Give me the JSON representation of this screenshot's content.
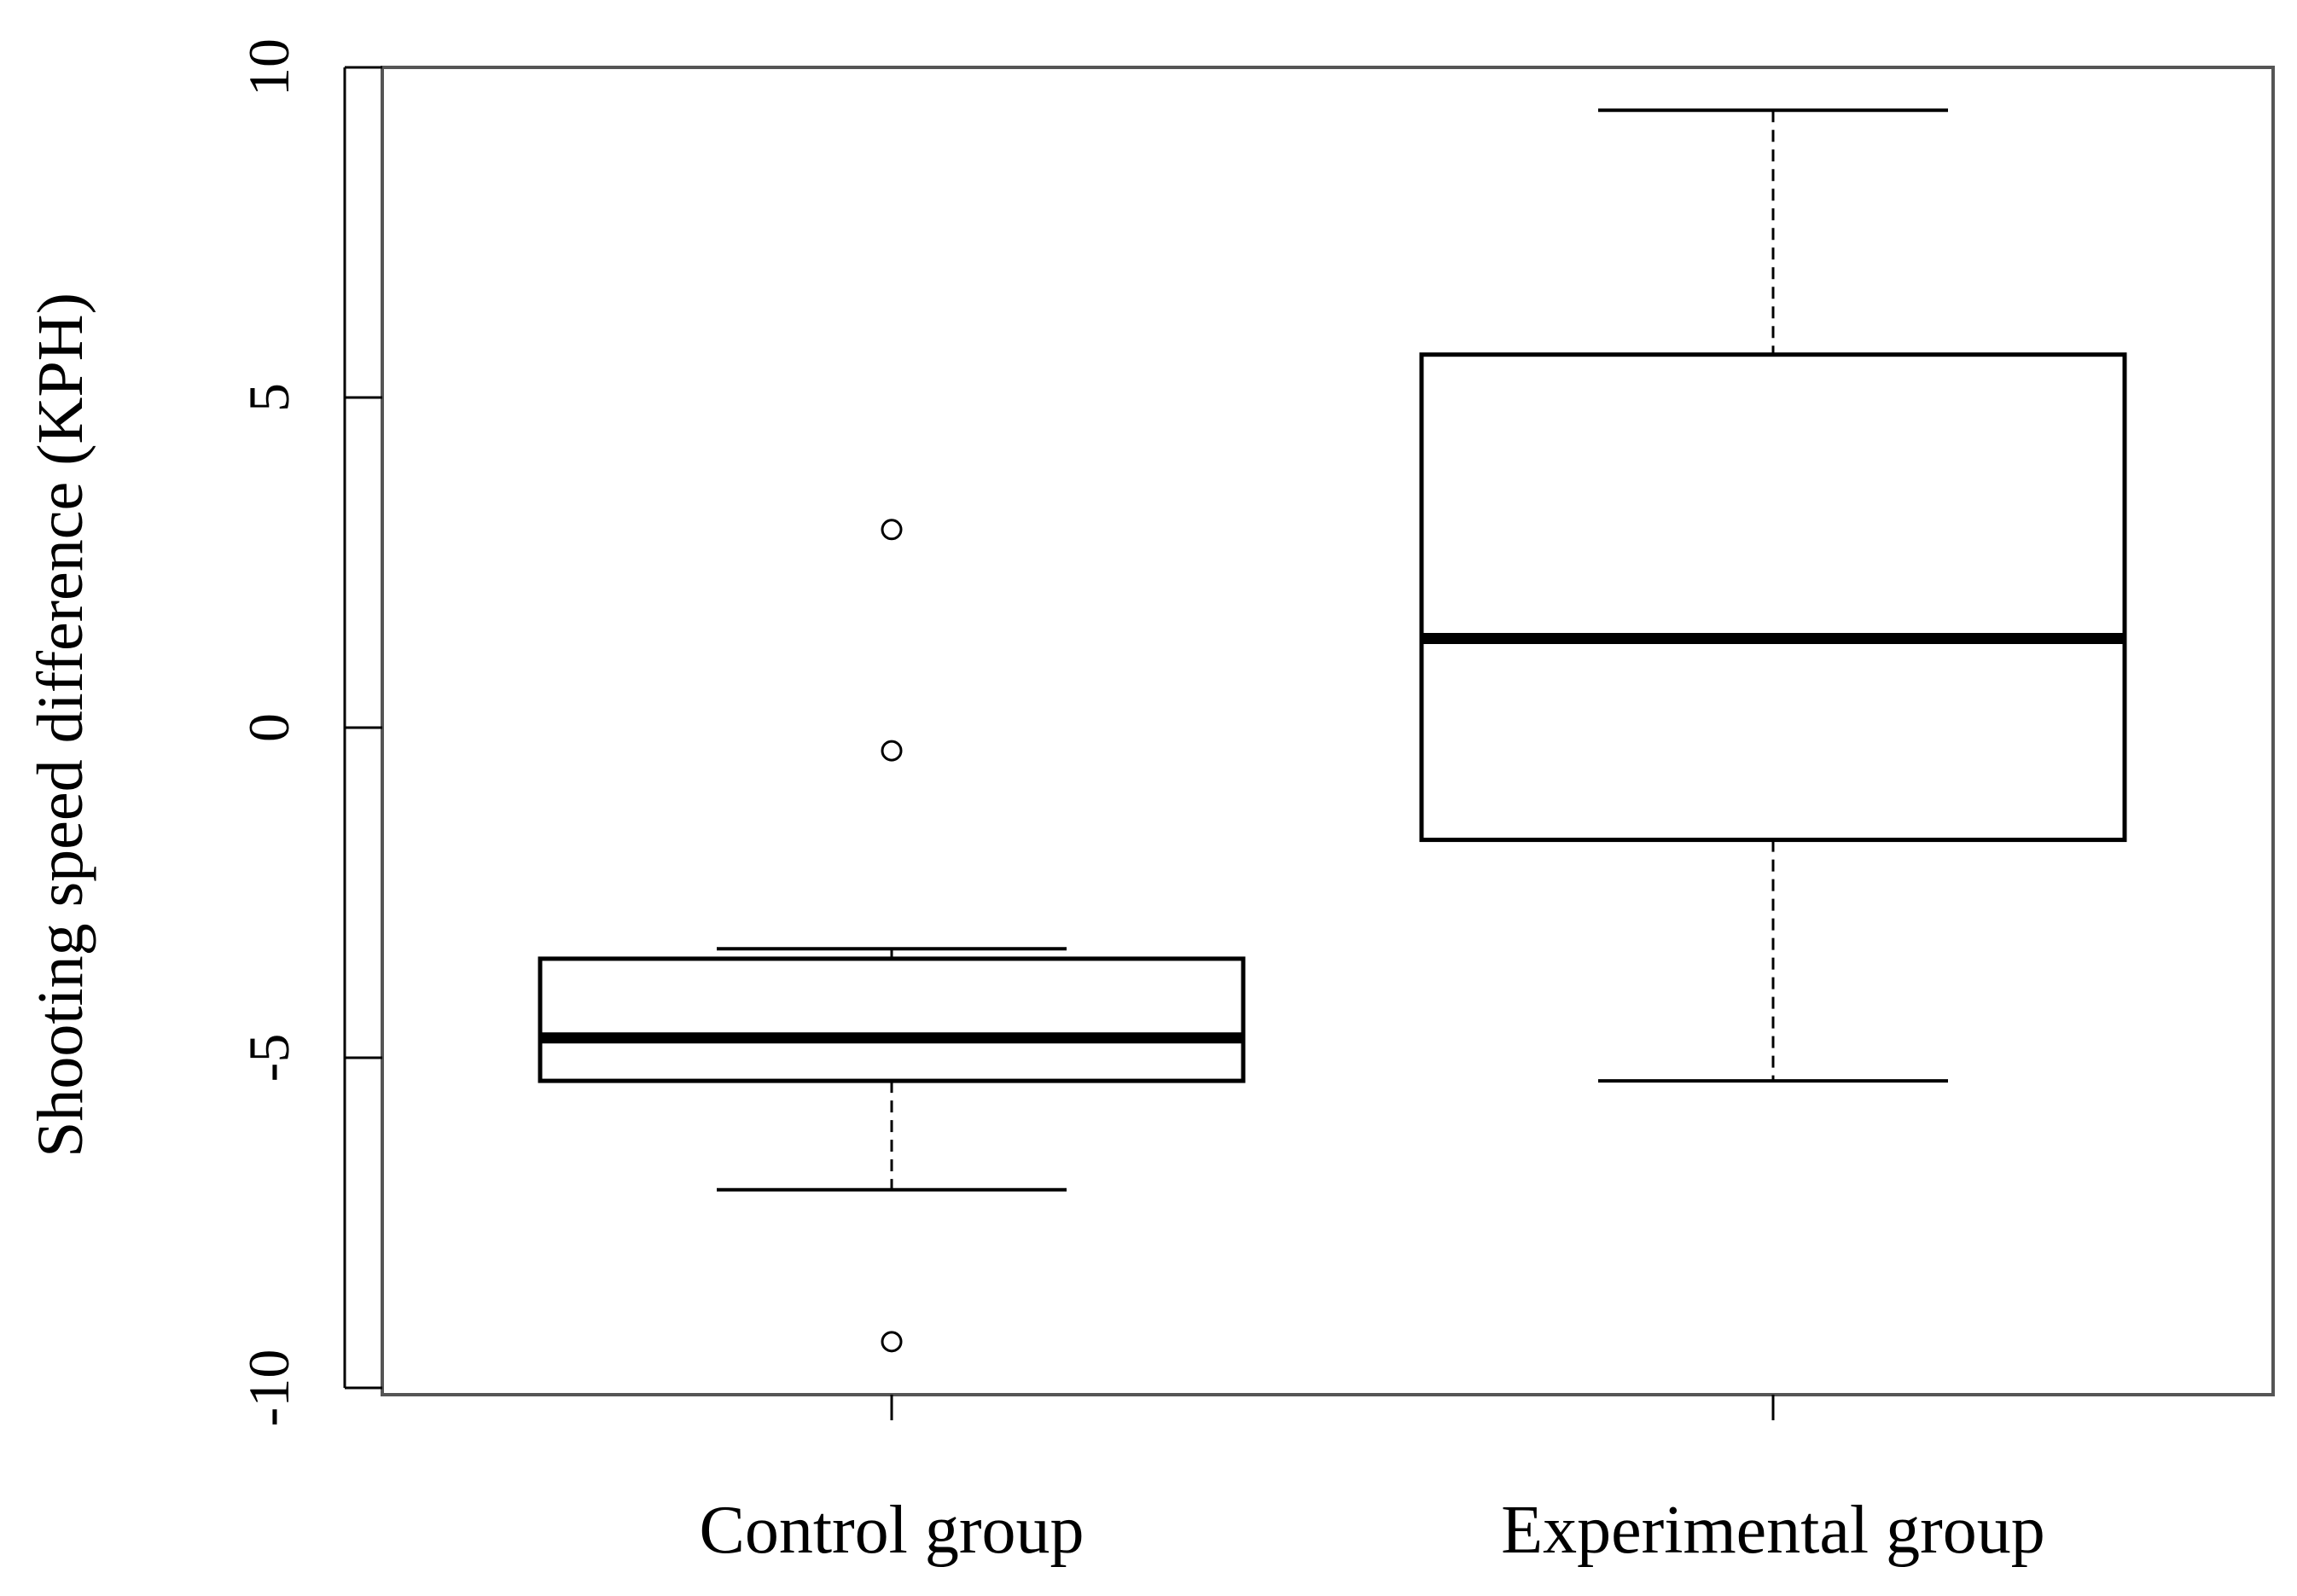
{
  "chart_data": {
    "type": "boxplot",
    "title": "",
    "xlabel": "",
    "ylabel": "Shooting speed difference (KPH)",
    "ylim": [
      -10.05,
      10.05
    ],
    "yticks": [
      -10,
      -5,
      0,
      5,
      10
    ],
    "yticklabels": [
      "-10",
      "-5",
      "0",
      "5",
      "10"
    ],
    "categories": [
      "Control group",
      "Experimental group"
    ],
    "groups": [
      {
        "name": "Control group",
        "whisker_low": -7.0,
        "q1": -5.35,
        "median": -4.7,
        "q3": -3.5,
        "whisker_high": -3.35,
        "outliers": [
          3.0,
          -0.35,
          -9.3
        ]
      },
      {
        "name": "Experimental group",
        "whisker_low": -5.35,
        "q1": -1.7,
        "median": 1.35,
        "q3": 5.65,
        "whisker_high": 9.35,
        "outliers": []
      }
    ],
    "grid": false,
    "legend": "none",
    "colors": {
      "stroke": "#000000",
      "frame": "#555555",
      "fill": "#ffffff"
    }
  }
}
